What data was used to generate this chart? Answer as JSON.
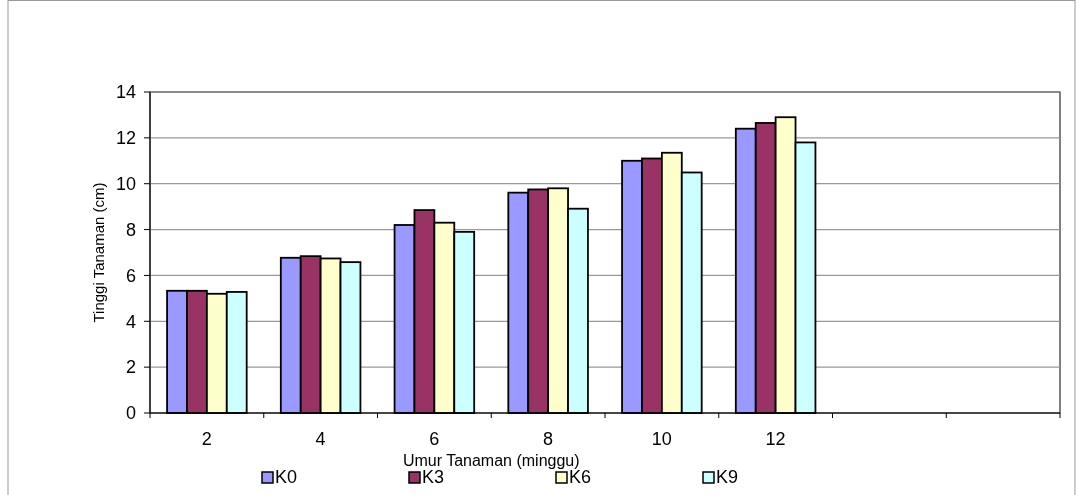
{
  "chart_data": {
    "type": "bar",
    "xlabel": "Umur Tanaman (minggu)",
    "ylabel": "Tinggi Tanaman (cm)",
    "categories": [
      "2",
      "4",
      "6",
      "8",
      "10",
      "12",
      null,
      null
    ],
    "series": [
      {
        "name": "K0",
        "color": "#9999ff",
        "values": [
          5.33,
          6.77,
          8.2,
          9.61,
          11.0,
          12.4,
          null,
          null
        ]
      },
      {
        "name": "K3",
        "color": "#993366",
        "values": [
          5.33,
          6.84,
          8.85,
          9.75,
          11.1,
          12.65,
          null,
          null
        ]
      },
      {
        "name": "K6",
        "color": "#ffffcc",
        "values": [
          5.2,
          6.74,
          8.3,
          9.8,
          11.35,
          12.9,
          null,
          null
        ]
      },
      {
        "name": "K9",
        "color": "#ccffff",
        "values": [
          5.28,
          6.58,
          7.9,
          8.91,
          10.49,
          11.8,
          null,
          null
        ]
      }
    ],
    "ylim": [
      0,
      14
    ],
    "yticks": [
      0,
      2,
      4,
      6,
      8,
      10,
      12,
      14
    ],
    "grid": "y",
    "legend": "bottom"
  }
}
